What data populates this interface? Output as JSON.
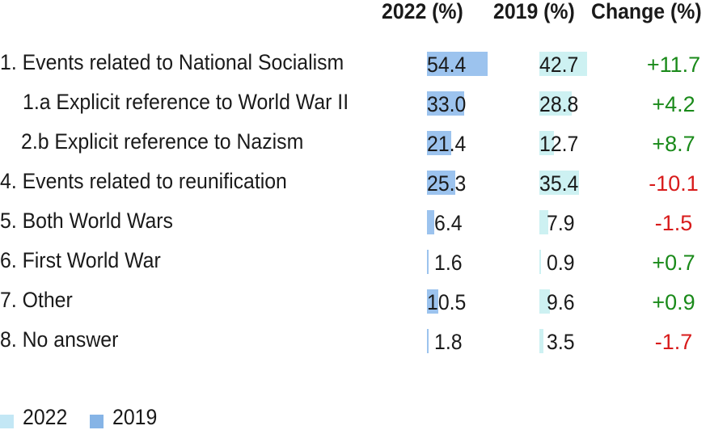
{
  "chart_data": {
    "type": "table",
    "columns": [
      "2022 (%)",
      "2019 (%)",
      "Change (%)"
    ],
    "rows": [
      {
        "label": "1. Events related to National Socialism",
        "v2022": "54.4",
        "v2019": "42.7",
        "change": "+11.7"
      },
      {
        "label": "1.a Explicit reference to World War II",
        "v2022": "33.0",
        "v2019": "28.8",
        "change": "+4.2"
      },
      {
        "label": "2.b Explicit reference to Nazism",
        "v2022": "21.4",
        "v2019": "12.7",
        "change": "+8.7"
      },
      {
        "label": "4. Events related to reunification",
        "v2022": "25.3",
        "v2019": "35.4",
        "change": "-10.1"
      },
      {
        "label": "5. Both World Wars",
        "v2022": "6.4",
        "v2019": "7.9",
        "change": "-1.5"
      },
      {
        "label": "6. First World War",
        "v2022": "1.6",
        "v2019": "0.9",
        "change": "+0.7"
      },
      {
        "label": "7. Other",
        "v2022": "10.5",
        "v2019": "9.6",
        "change": "+0.9"
      },
      {
        "label": "8. No answer",
        "v2022": "1.8",
        "v2019": "3.5",
        "change": "-1.7"
      }
    ],
    "legend": [
      "2022",
      "2019"
    ],
    "legend_placement": "bottom-left",
    "colors": {
      "bar_2022": "#9cc3ee",
      "bar_2019": "#cdf1f2",
      "legend_2022": "#c3e7f5",
      "legend_2019": "#86b4e6",
      "positive": "#1a8a1a",
      "negative": "#d81b1b",
      "text": "#1a1a1a"
    }
  }
}
